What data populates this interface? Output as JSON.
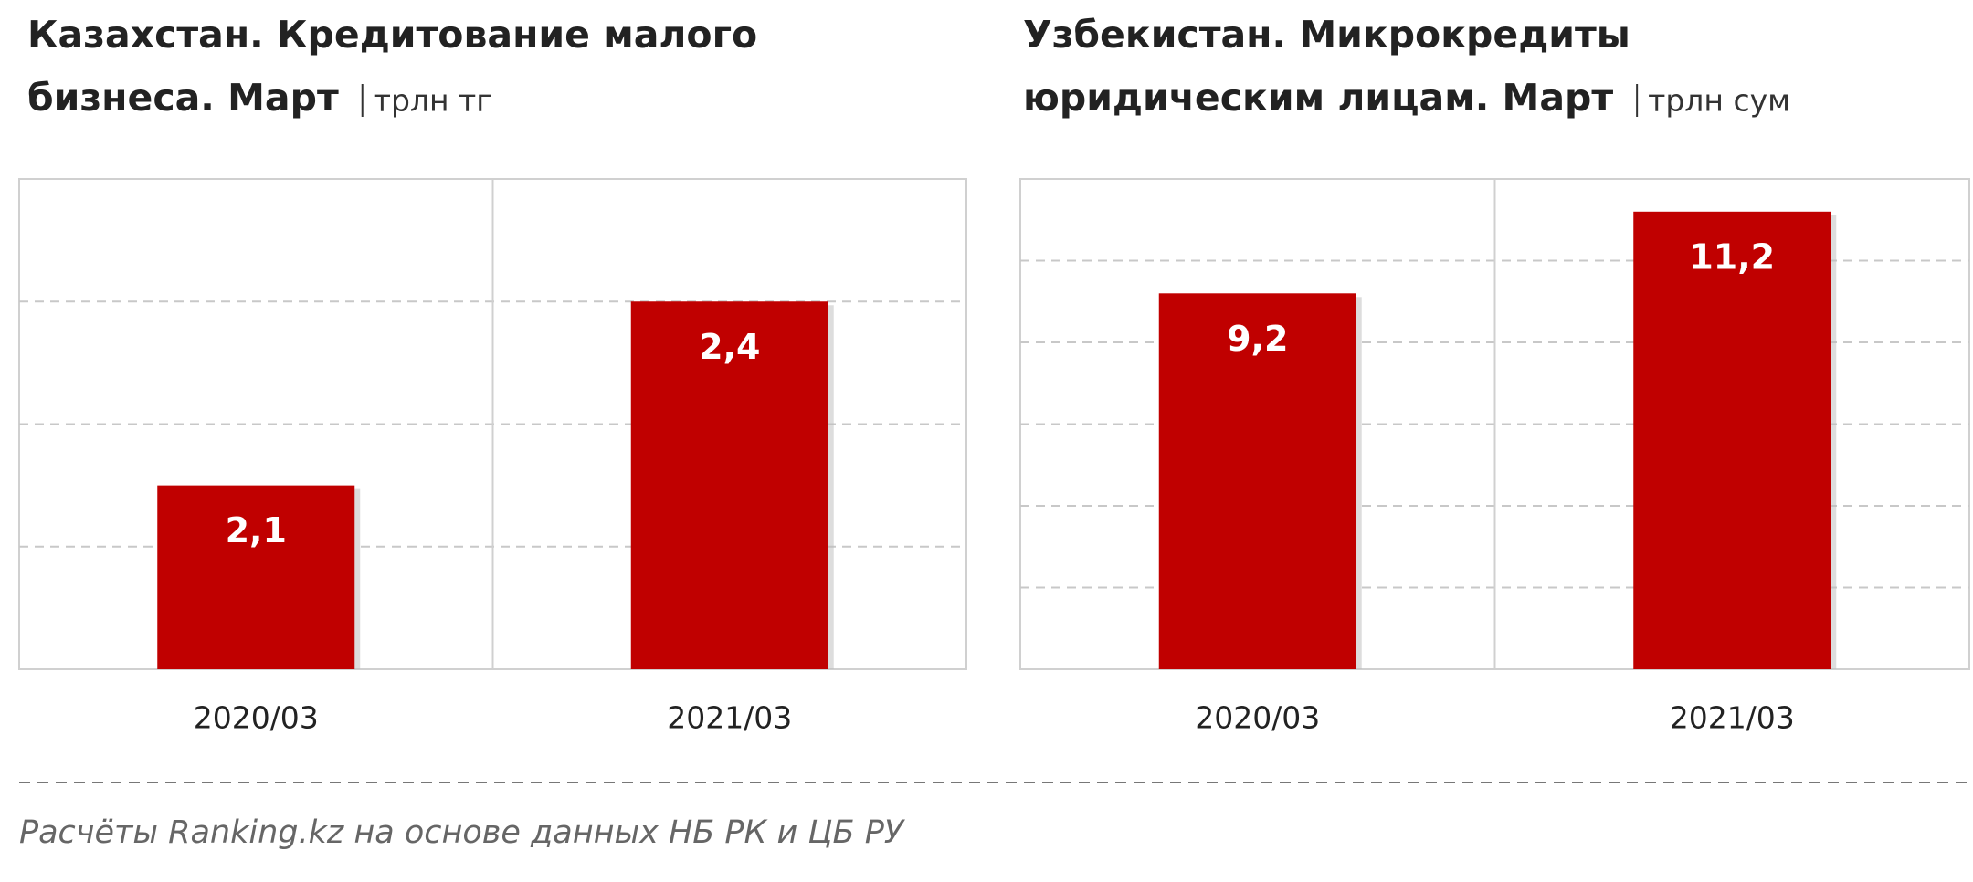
{
  "chart_data": [
    {
      "type": "bar",
      "title": [
        "Казахстан. Кредитование малого",
        "бизнеса. Март"
      ],
      "unit": "трлн тг",
      "categories": [
        "2020/03",
        "2021/03"
      ],
      "values": [
        2.1,
        2.4
      ],
      "value_labels": [
        "2,1",
        "2,4"
      ],
      "color": "#c00000",
      "ylim": [
        1.8,
        2.6
      ],
      "yticks": [
        2.0,
        2.2,
        2.4
      ],
      "grid": true
    },
    {
      "type": "bar",
      "title": [
        "Узбекистан. Микрокредиты",
        "юридическим лицам. Март"
      ],
      "unit": "трлн сум",
      "categories": [
        "2020/03",
        "2021/03"
      ],
      "values": [
        9.2,
        11.2
      ],
      "value_labels": [
        "9,2",
        "11,2"
      ],
      "color": "#c00000",
      "ylim": [
        0,
        12
      ],
      "yticks": [
        2,
        4,
        6,
        8,
        10
      ],
      "grid": true
    }
  ],
  "footer": "Расчёты Ranking.kz на основе данных  НБ РК и ЦБ РУ"
}
